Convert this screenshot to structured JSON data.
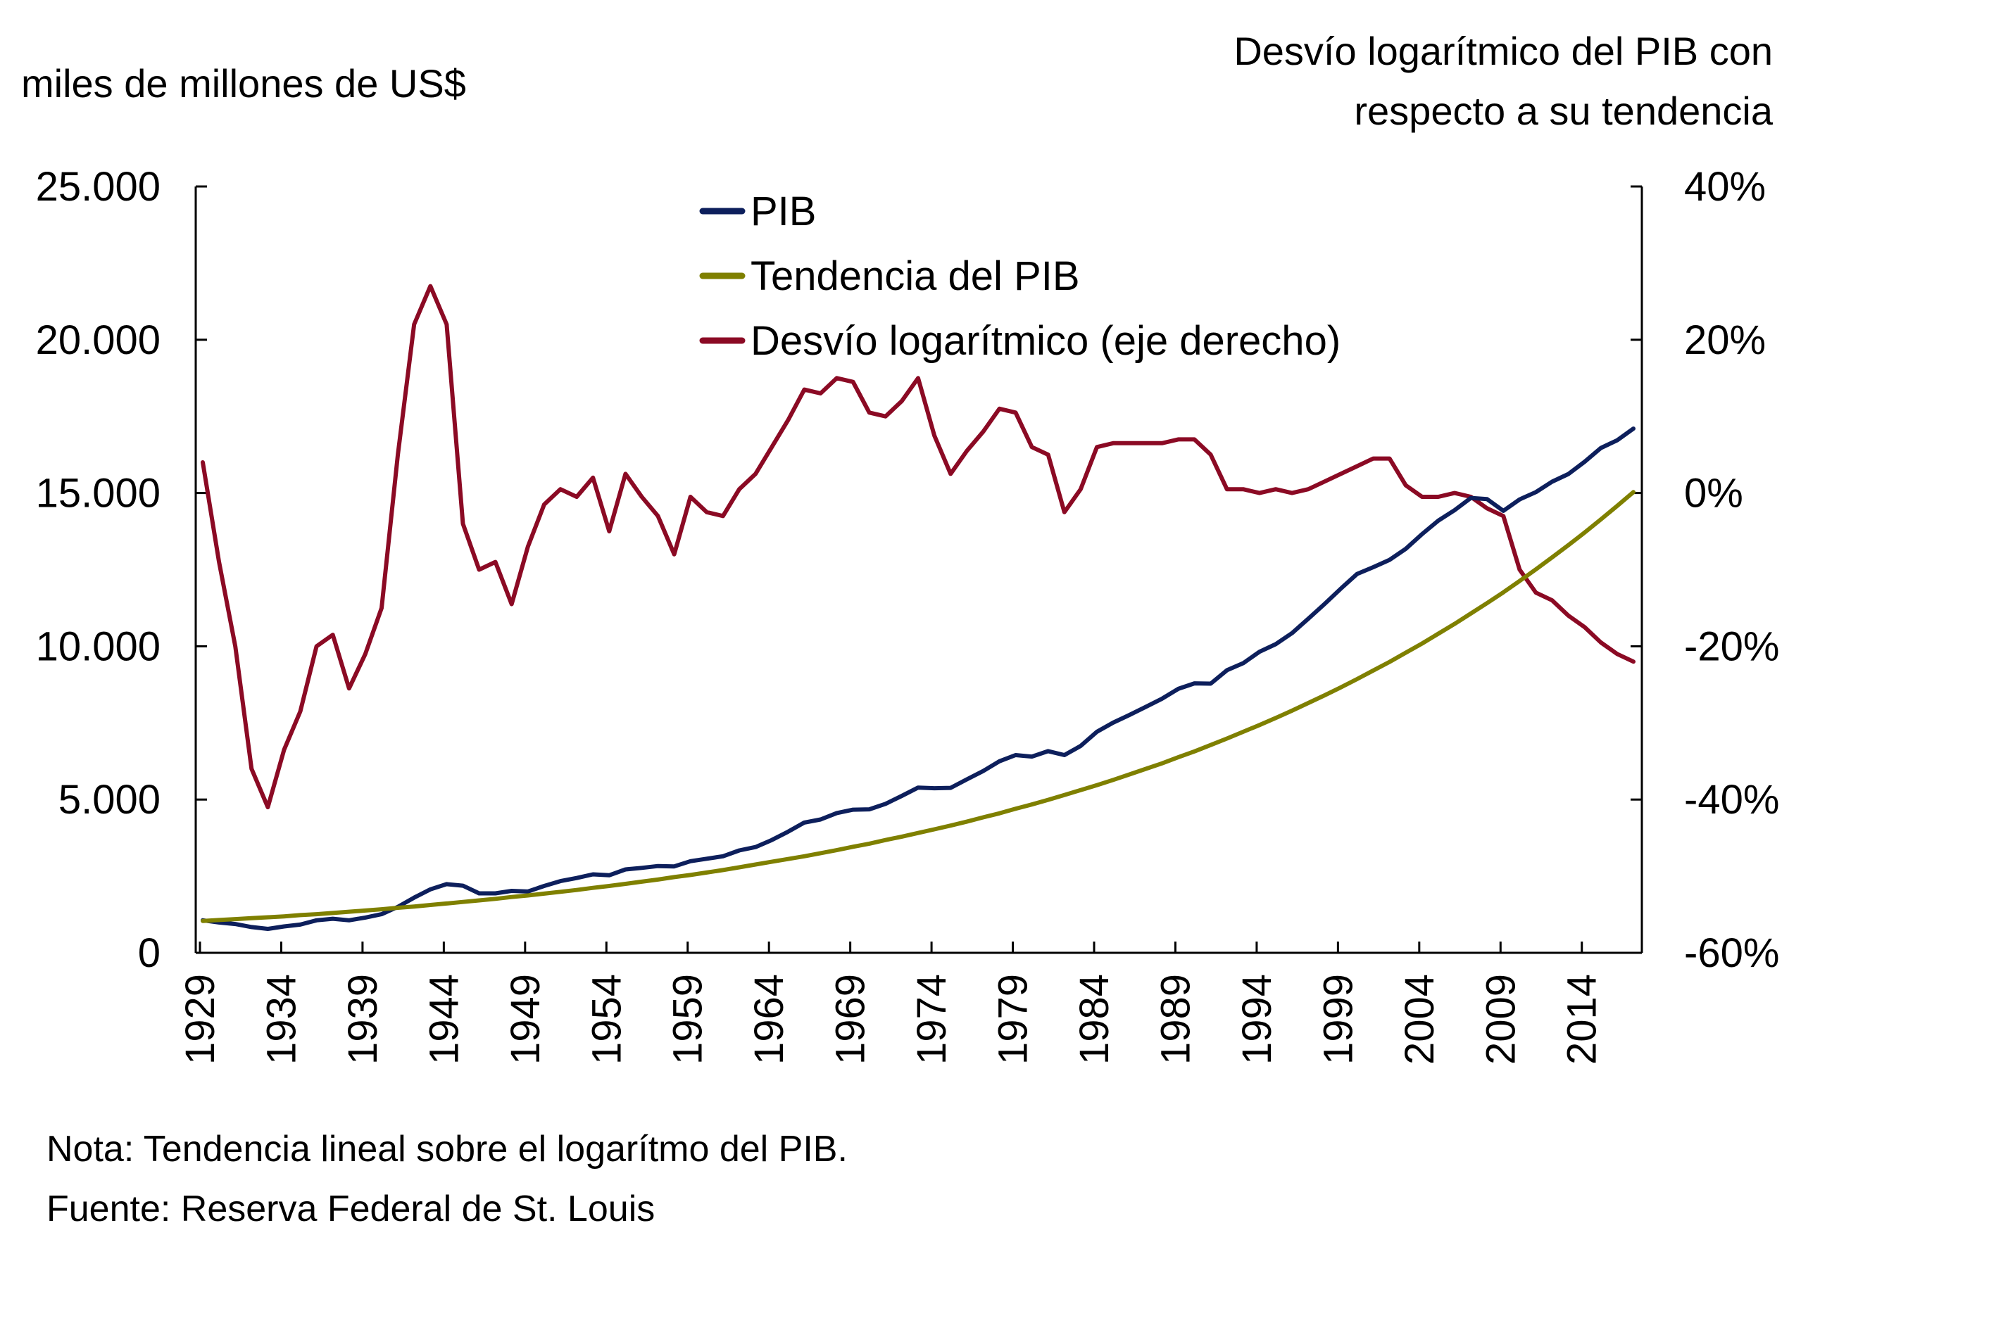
{
  "chart_data": {
    "type": "line",
    "left_axis_title": "miles de millones de US$",
    "right_axis_title_lines": [
      "Desvío logarítmico del PIB con",
      "respecto a su tendencia"
    ],
    "left_ylim": [
      0,
      25000
    ],
    "left_yticks": [
      0,
      5000,
      10000,
      15000,
      20000,
      25000
    ],
    "left_ytick_labels": [
      "0",
      "5.000",
      "10.000",
      "15.000",
      "20.000",
      "25.000"
    ],
    "right_ylim": [
      -60,
      40
    ],
    "right_yticks": [
      -60,
      -40,
      -20,
      0,
      20,
      40
    ],
    "right_ytick_labels": [
      "-60%",
      "-40%",
      "-20%",
      "0%",
      "20%",
      "40%"
    ],
    "x_start": 1929,
    "x_end": 2017,
    "xtick_labels": [
      "1929",
      "1934",
      "1939",
      "1944",
      "1949",
      "1954",
      "1959",
      "1964",
      "1969",
      "1974",
      "1979",
      "1984",
      "1989",
      "1994",
      "1999",
      "2004",
      "2009",
      "2014"
    ],
    "grid": false,
    "legend_position": "top-center",
    "series": [
      {
        "name": "PIB",
        "axis": "left",
        "color": "#0d1f5c",
        "values": [
          1060,
          990,
          940,
          840,
          780,
          860,
          920,
          1060,
          1110,
          1060,
          1150,
          1260,
          1500,
          1800,
          2070,
          2240,
          2190,
          1940,
          1940,
          2020,
          2000,
          2180,
          2340,
          2440,
          2560,
          2530,
          2720,
          2770,
          2830,
          2820,
          2990,
          3070,
          3150,
          3340,
          3450,
          3680,
          3950,
          4250,
          4350,
          4560,
          4670,
          4680,
          4860,
          5120,
          5390,
          5370,
          5380,
          5660,
          5930,
          6250,
          6450,
          6400,
          6580,
          6450,
          6750,
          7210,
          7510,
          7760,
          8020,
          8290,
          8610,
          8790,
          8780,
          9220,
          9450,
          9820,
          10070,
          10430,
          10900,
          11380,
          11880,
          12360,
          12580,
          12820,
          13180,
          13660,
          14100,
          14440,
          14840,
          14800,
          14420,
          14790,
          15030,
          15370,
          15620,
          16020,
          16470,
          16720,
          17100
        ]
      },
      {
        "name": "Tendencia del PIB",
        "axis": "left",
        "color": "#7f8000",
        "values": [
          1040,
          1070,
          1100,
          1130,
          1160,
          1190,
          1230,
          1260,
          1300,
          1340,
          1380,
          1420,
          1470,
          1510,
          1560,
          1610,
          1660,
          1710,
          1760,
          1820,
          1870,
          1930,
          1990,
          2050,
          2120,
          2180,
          2250,
          2320,
          2390,
          2470,
          2540,
          2620,
          2700,
          2790,
          2880,
          2970,
          3060,
          3150,
          3250,
          3350,
          3460,
          3560,
          3680,
          3790,
          3910,
          4030,
          4150,
          4280,
          4420,
          4550,
          4700,
          4840,
          4990,
          5150,
          5310,
          5470,
          5640,
          5820,
          6000,
          6180,
          6380,
          6570,
          6780,
          6990,
          7210,
          7430,
          7660,
          7900,
          8150,
          8400,
          8660,
          8930,
          9210,
          9490,
          9790,
          10090,
          10410,
          10730,
          11070,
          11410,
          11760,
          12130,
          12510,
          12900,
          13300,
          13710,
          14140,
          14580,
          15030
        ]
      },
      {
        "name": "Desvío logarítmico (eje derecho)",
        "axis": "right",
        "color": "#8b0a24",
        "values": [
          4.0,
          -9.0,
          -20.0,
          -36.0,
          -41.0,
          -33.5,
          -28.5,
          -20.0,
          -18.5,
          -25.5,
          -21.0,
          -15.0,
          5.0,
          22.0,
          27.0,
          22.0,
          -4.0,
          -10.0,
          -9.0,
          -14.5,
          -7.0,
          -1.5,
          0.5,
          -0.5,
          2.0,
          -5.0,
          2.5,
          -0.5,
          -3.0,
          -8.0,
          -0.5,
          -2.5,
          -3.0,
          0.5,
          2.5,
          6.0,
          9.5,
          13.5,
          13.0,
          15.0,
          14.5,
          10.5,
          10.0,
          12.0,
          15.0,
          7.5,
          2.5,
          5.5,
          8.0,
          11.0,
          10.5,
          6.0,
          5.0,
          -2.5,
          0.5,
          6.0,
          6.5,
          6.5,
          6.5,
          6.5,
          7.0,
          7.0,
          5.0,
          0.5,
          0.5,
          0.0,
          0.5,
          0.0,
          0.5,
          1.5,
          2.5,
          3.5,
          4.5,
          4.5,
          1.0,
          -0.5,
          -0.5,
          0.0,
          -0.5,
          -2.0,
          -3.0,
          -10.0,
          -13.0,
          -14.0,
          -16.0,
          -17.5,
          -19.5,
          -21.0,
          -22.0
        ]
      }
    ],
    "notes": [
      "Nota: Tendencia lineal sobre el logarítmo del PIB.",
      "Fuente: Reserva Federal de St. Louis"
    ]
  }
}
